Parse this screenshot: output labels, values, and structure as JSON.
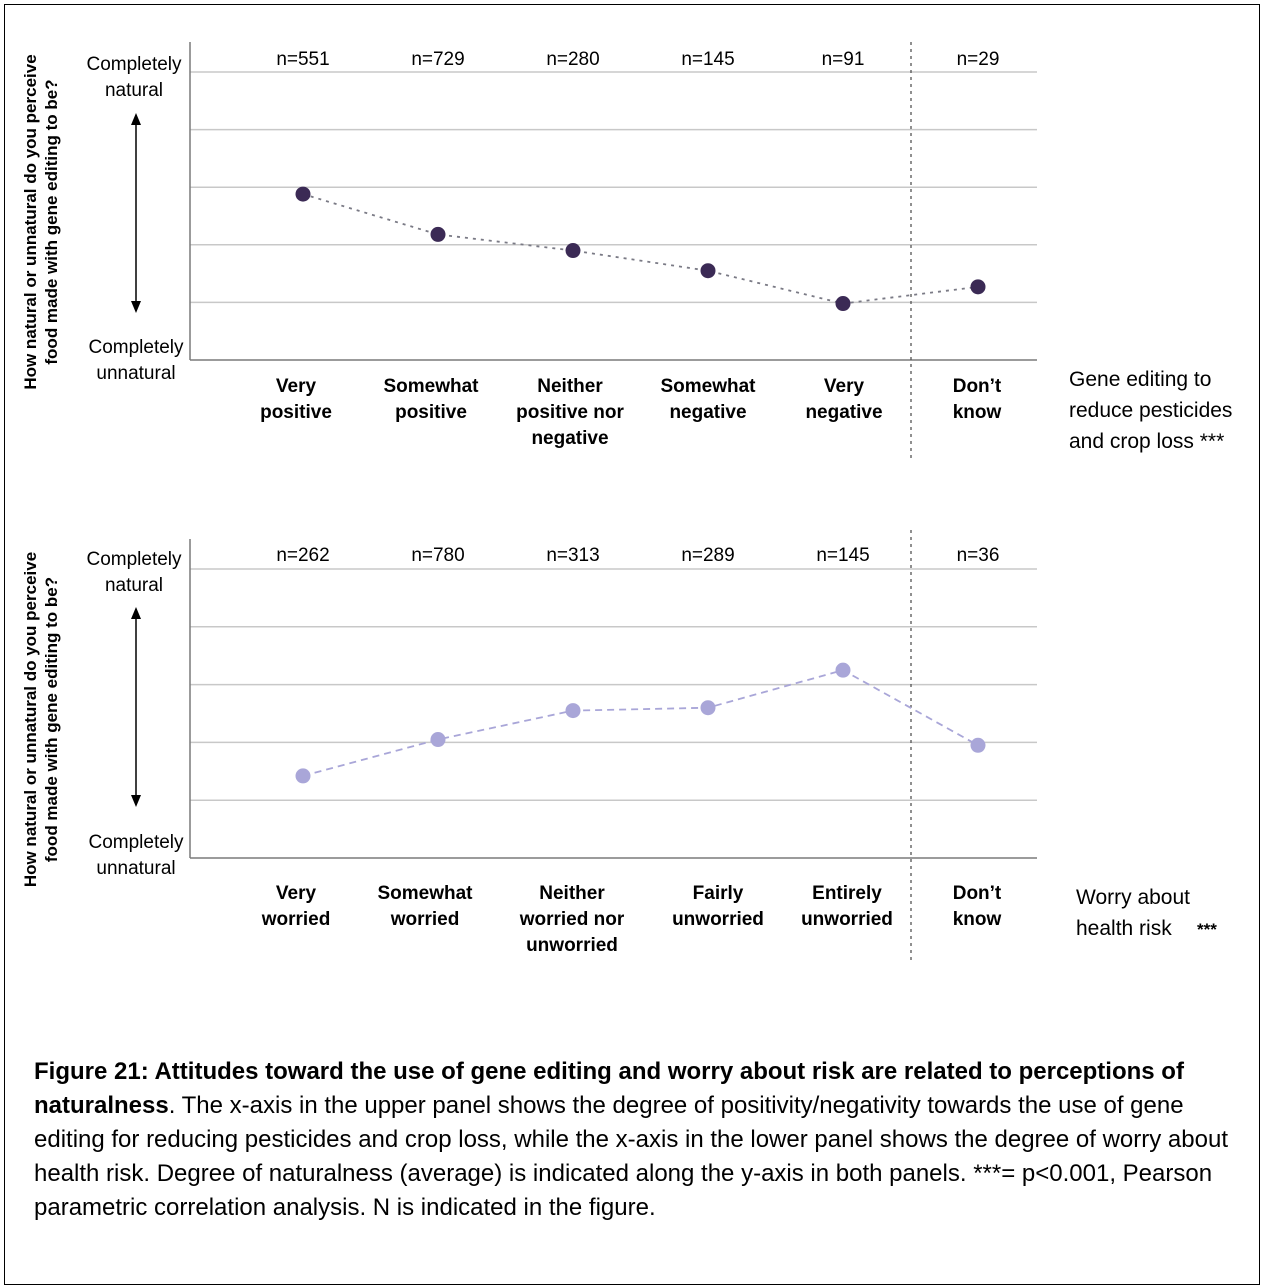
{
  "chart_data": [
    {
      "type": "line",
      "panel": "upper",
      "ylabel": [
        "How natural or unnatural do you perceive",
        "food made with gene editing to be?"
      ],
      "y_top_label": [
        "Completely",
        "natural"
      ],
      "y_bottom_label": [
        "Completely",
        "unnatural"
      ],
      "xlabel": [
        "Gene editing to",
        "reduce pesticides",
        "and crop loss ***"
      ],
      "categories": [
        [
          "Very",
          "positive"
        ],
        [
          "Somewhat",
          "positive"
        ],
        [
          "Neither",
          "positive nor",
          "negative"
        ],
        [
          "Somewhat",
          "negative"
        ],
        [
          "Very",
          "negative"
        ],
        [
          "Don’t",
          "know"
        ]
      ],
      "n_labels": [
        "n=551",
        "n=729",
        "n=280",
        "n=145",
        "n=91",
        "n=29"
      ],
      "values": [
        2.88,
        2.18,
        1.9,
        1.55,
        0.98,
        1.27
      ],
      "ylim": [
        0,
        5
      ],
      "grid": true,
      "color": "#3b2a55"
    },
    {
      "type": "line",
      "panel": "lower",
      "ylabel": [
        "How natural or unnatural do you perceive",
        "food made with gene editing to be?"
      ],
      "y_top_label": [
        "Completely",
        "natural"
      ],
      "y_bottom_label": [
        "Completely",
        "unnatural"
      ],
      "xlabel": [
        "Worry about",
        "health risk"
      ],
      "xlabel_suffix": "***",
      "categories": [
        [
          "Very",
          "worried"
        ],
        [
          "Somewhat",
          "worried"
        ],
        [
          "Neither",
          "worried nor",
          "unworried"
        ],
        [
          "Fairly",
          "unworried"
        ],
        [
          "Entirely",
          "unworried"
        ],
        [
          "Don’t",
          "know"
        ]
      ],
      "n_labels": [
        "n=262",
        "n=780",
        "n=313",
        "n=289",
        "n=145",
        "n=36"
      ],
      "values": [
        1.42,
        2.05,
        2.55,
        2.6,
        3.25,
        1.95
      ],
      "ylim": [
        0,
        5
      ],
      "grid": true,
      "color": "#a9a6d8"
    }
  ],
  "caption": {
    "bold": "Figure 21: Attitudes toward the use of gene editing and worry about risk are related to perceptions of naturalness",
    "rest": ". The x-axis in the upper panel shows the degree of positivity/negativity towards the use of gene editing for reducing pesticides and crop loss, while the x-axis in the lower panel shows the degree of worry about health risk. Degree of naturalness (average) is indicated along the y-axis in both panels. ***= p<0.001, Pearson parametric correlation analysis. N is indicated in the figure."
  }
}
